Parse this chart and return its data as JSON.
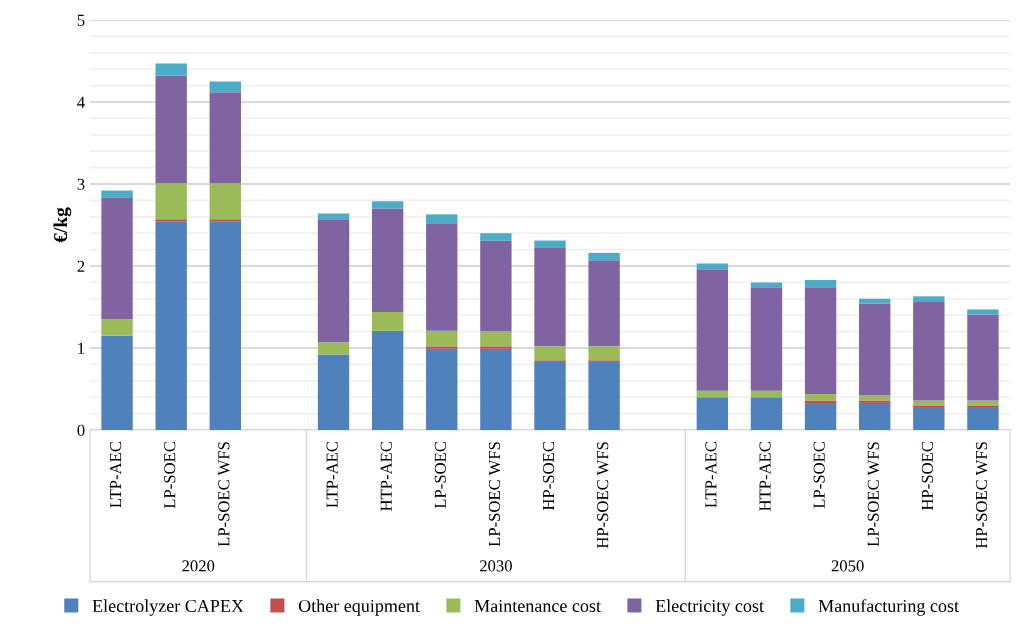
{
  "chart_data": {
    "type": "bar",
    "stacked": true,
    "ylabel": "€/kg",
    "categories": [
      "LTP-AEC",
      "LP-SOEC",
      "LP-SOEC WFS",
      null,
      "LTP-AEC",
      "HTP-AEC",
      "LP-SOEC",
      "LP-SOEC WFS",
      "HP-SOEC",
      "HP-SOEC WFS",
      null,
      "LTP-AEC",
      "HTP-AEC",
      "LP-SOEC",
      "LP-SOEC WFS",
      "HP-SOEC",
      "HP-SOEC WFS"
    ],
    "annotations": [
      "2020",
      "2030",
      "2050"
    ],
    "series": [
      {
        "name": "Electrolyzer CAPEX",
        "color": "#4f81bd",
        "values": [
          1.15,
          2.54,
          2.54,
          null,
          0.92,
          1.21,
          0.99,
          0.99,
          0.83,
          0.83,
          null,
          0.4,
          0.4,
          0.33,
          0.33,
          0.28,
          0.28
        ]
      },
      {
        "name": "Other equipment",
        "color": "#c0504d",
        "values": [
          0,
          0.03,
          0.03,
          null,
          0,
          0,
          0.03,
          0.03,
          0.02,
          0.02,
          null,
          0,
          0,
          0.03,
          0.03,
          0.02,
          0.02
        ]
      },
      {
        "name": "Maintenance cost",
        "color": "#9bbb59",
        "values": [
          0.2,
          0.44,
          0.44,
          null,
          0.15,
          0.23,
          0.19,
          0.18,
          0.17,
          0.17,
          null,
          0.08,
          0.08,
          0.08,
          0.06,
          0.06,
          0.06
        ]
      },
      {
        "name": "Electricity cost",
        "color": "#8064a2",
        "values": [
          1.48,
          1.31,
          1.11,
          null,
          1.49,
          1.26,
          1.31,
          1.11,
          1.2,
          1.05,
          null,
          1.48,
          1.26,
          1.3,
          1.12,
          1.2,
          1.05
        ]
      },
      {
        "name": "Manufacturing cost",
        "color": "#4bacc6",
        "values": [
          0.09,
          0.15,
          0.13,
          null,
          0.08,
          0.09,
          0.11,
          0.09,
          0.09,
          0.09,
          null,
          0.07,
          0.06,
          0.09,
          0.06,
          0.07,
          0.06
        ]
      }
    ],
    "ylim": [
      0,
      5
    ],
    "yticks": [
      0,
      {
        "value": 0.2,
        "label": null
      },
      {
        "value": 0.4,
        "label": null
      },
      {
        "value": 0.6,
        "label": null
      },
      {
        "value": 0.8,
        "label": null
      },
      1,
      {
        "value": 1.2,
        "label": null
      },
      {
        "value": 1.4,
        "label": null
      },
      {
        "value": 1.6,
        "label": null
      },
      {
        "value": 1.8,
        "label": null
      },
      2,
      {
        "value": 2.2,
        "label": null
      },
      {
        "value": 2.4,
        "label": null
      },
      {
        "value": 2.6,
        "label": null
      },
      {
        "value": 2.8,
        "label": null
      },
      3,
      {
        "value": 3.2,
        "label": null
      },
      {
        "value": 3.4,
        "label": null
      },
      {
        "value": 3.6,
        "label": null
      },
      {
        "value": 3.8,
        "label": null
      },
      4,
      {
        "value": 4.2,
        "label": null
      },
      {
        "value": 4.4,
        "label": null
      },
      {
        "value": 4.6,
        "label": null
      },
      {
        "value": 4.8,
        "label": null
      },
      5
    ],
    "grid": "y",
    "legend": "bottom"
  }
}
